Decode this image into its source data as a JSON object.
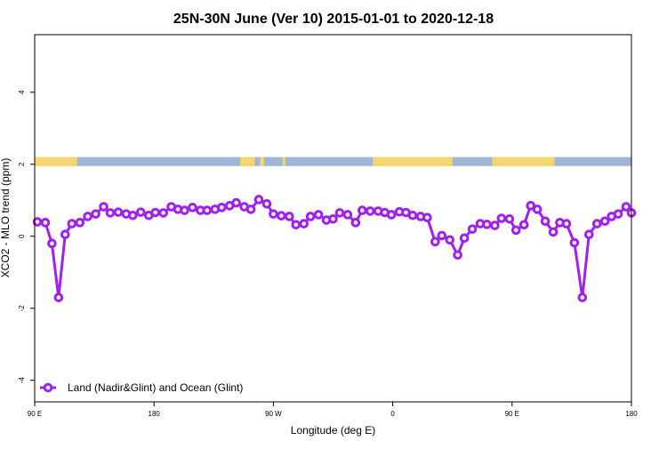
{
  "chart_data": {
    "type": "line",
    "title": "25N-30N June (Ver 10)   2015-01-01 to 2020-12-18",
    "xlabel": "Longitude (deg E)",
    "ylabel": "XCO2 - MLO trend (ppm)",
    "xlim": [
      90,
      540
    ],
    "ylim": [
      -4.6,
      5.6
    ],
    "x_ticks": [
      {
        "value": 90,
        "label": "90 E"
      },
      {
        "value": 180,
        "label": "180"
      },
      {
        "value": 270,
        "label": "90 W"
      },
      {
        "value": 360,
        "label": "0"
      },
      {
        "value": 450,
        "label": "90 E"
      },
      {
        "value": 540,
        "label": "180"
      }
    ],
    "y_ticks": [
      {
        "value": -4,
        "label": "-4"
      },
      {
        "value": -2,
        "label": "-2"
      },
      {
        "value": 0,
        "label": "0"
      },
      {
        "value": 2,
        "label": "2"
      },
      {
        "value": 4,
        "label": "4"
      }
    ],
    "legend_position": "bottom-left",
    "grid": false,
    "land_mask": {
      "y_range": [
        1.95,
        2.2
      ],
      "ocean_color": "#a0b6d6",
      "land_color": "#f5d76e",
      "land_segments": [
        [
          90,
          122
        ],
        [
          245,
          256
        ],
        [
          260,
          263
        ],
        [
          277,
          279
        ],
        [
          345,
          405
        ],
        [
          435,
          482
        ]
      ]
    },
    "series": [
      {
        "name": "Land (Nadir&Glint) and Ocean (Glint)",
        "color": "#a020f0",
        "x": [
          92,
          98,
          103,
          108,
          113,
          118,
          124,
          130,
          136,
          142,
          147,
          153,
          159,
          164,
          170,
          176,
          181,
          187,
          193,
          198,
          203,
          209,
          215,
          220,
          226,
          231,
          237,
          242,
          248,
          253,
          259,
          265,
          270,
          276,
          282,
          287,
          293,
          298,
          304,
          310,
          315,
          320,
          326,
          332,
          337,
          343,
          349,
          354,
          359,
          365,
          370,
          375,
          381,
          386,
          392,
          397,
          403,
          409,
          414,
          420,
          426,
          431,
          437,
          442,
          448,
          453,
          459,
          464,
          469,
          475,
          481,
          486,
          491,
          497,
          503,
          508,
          514,
          520,
          525,
          530,
          536,
          540
        ],
        "y": [
          0.4,
          0.38,
          -0.2,
          -1.7,
          0.05,
          0.35,
          0.38,
          0.55,
          0.62,
          0.82,
          0.65,
          0.67,
          0.62,
          0.58,
          0.67,
          0.58,
          0.66,
          0.65,
          0.82,
          0.75,
          0.72,
          0.8,
          0.72,
          0.72,
          0.75,
          0.8,
          0.85,
          0.93,
          0.82,
          0.75,
          1.02,
          0.9,
          0.62,
          0.57,
          0.55,
          0.32,
          0.35,
          0.55,
          0.6,
          0.45,
          0.48,
          0.65,
          0.6,
          0.38,
          0.72,
          0.7,
          0.7,
          0.66,
          0.6,
          0.68,
          0.66,
          0.58,
          0.55,
          0.52,
          -0.15,
          0.02,
          -0.1,
          -0.52,
          -0.05,
          0.2,
          0.35,
          0.33,
          0.3,
          0.5,
          0.48,
          0.17,
          0.32,
          0.85,
          0.75,
          0.42,
          0.12,
          0.38,
          0.35,
          -0.18,
          -1.7,
          0.05,
          0.35,
          0.42,
          0.55,
          0.62,
          0.82,
          0.65
        ]
      }
    ]
  }
}
